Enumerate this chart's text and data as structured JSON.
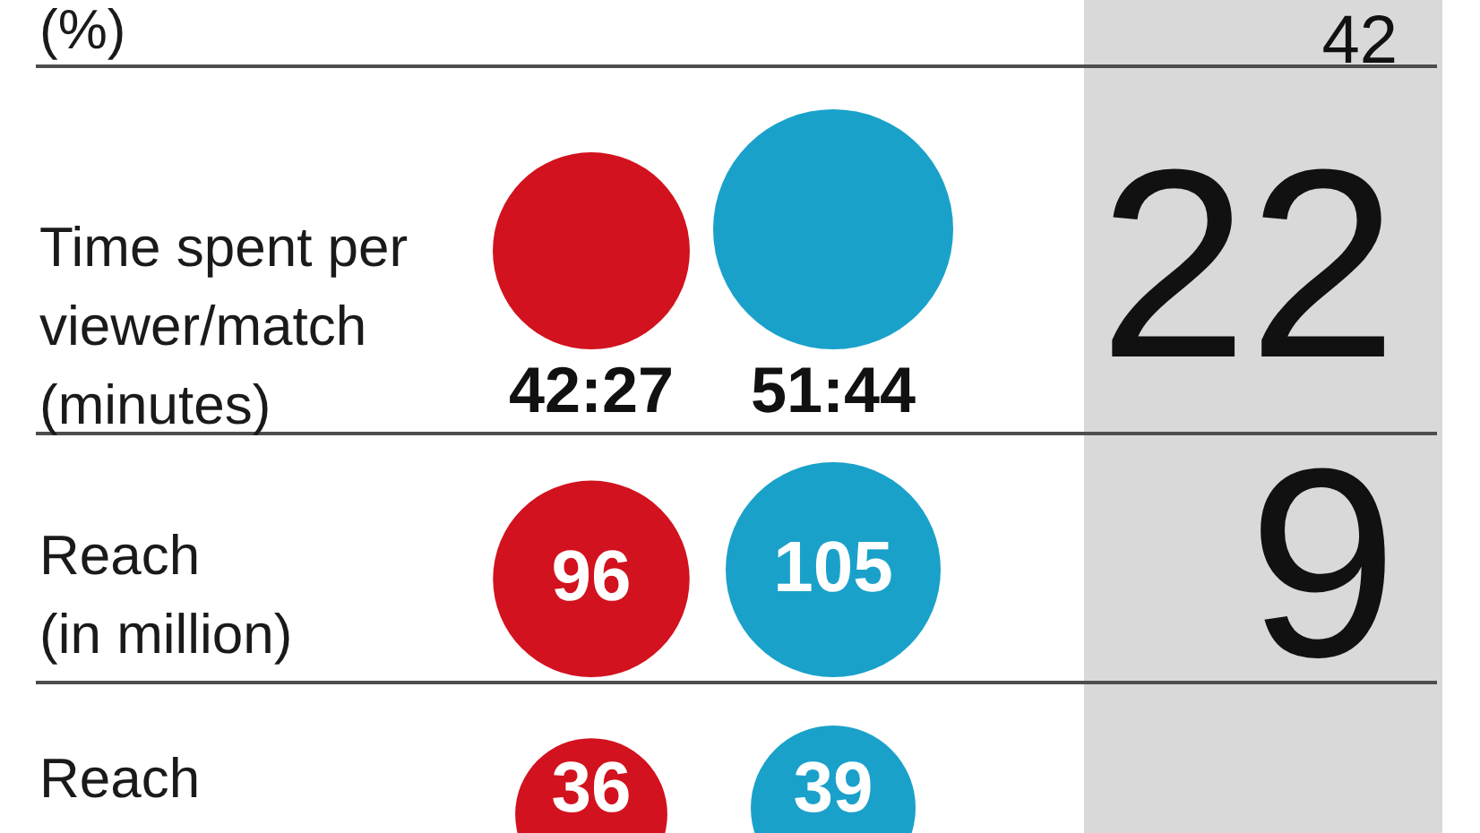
{
  "chart_data": {
    "type": "other",
    "data_labels": true,
    "categories": [
      "(%)",
      "Time spent per viewer/match (minutes)",
      "Reach (in million)",
      "Reach"
    ],
    "series": [
      {
        "color": "#d2121e",
        "values": [
          null,
          42.45,
          96,
          36
        ],
        "value_labels": [
          null,
          "42:27",
          "96",
          "36"
        ]
      },
      {
        "color": "#1aa1ca",
        "values": [
          null,
          51.73,
          105,
          39
        ],
        "value_labels": [
          null,
          "51:44",
          "105",
          "39"
        ]
      },
      {
        "values": [
          42,
          22,
          9,
          null
        ]
      }
    ]
  }
}
